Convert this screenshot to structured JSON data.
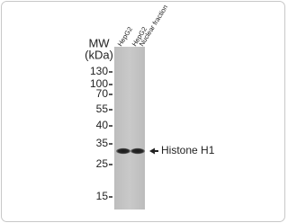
{
  "mw_label": "MW",
  "mw_unit": "(kDa)",
  "markers": [
    "130",
    "100",
    "70",
    "55",
    "40",
    "35",
    "25",
    "15"
  ],
  "lanes": [
    {
      "label": "HepG2"
    },
    {
      "label": "HepG2",
      "sublabel": "Nuclear fraction"
    }
  ],
  "band_label": "Histone H1"
}
